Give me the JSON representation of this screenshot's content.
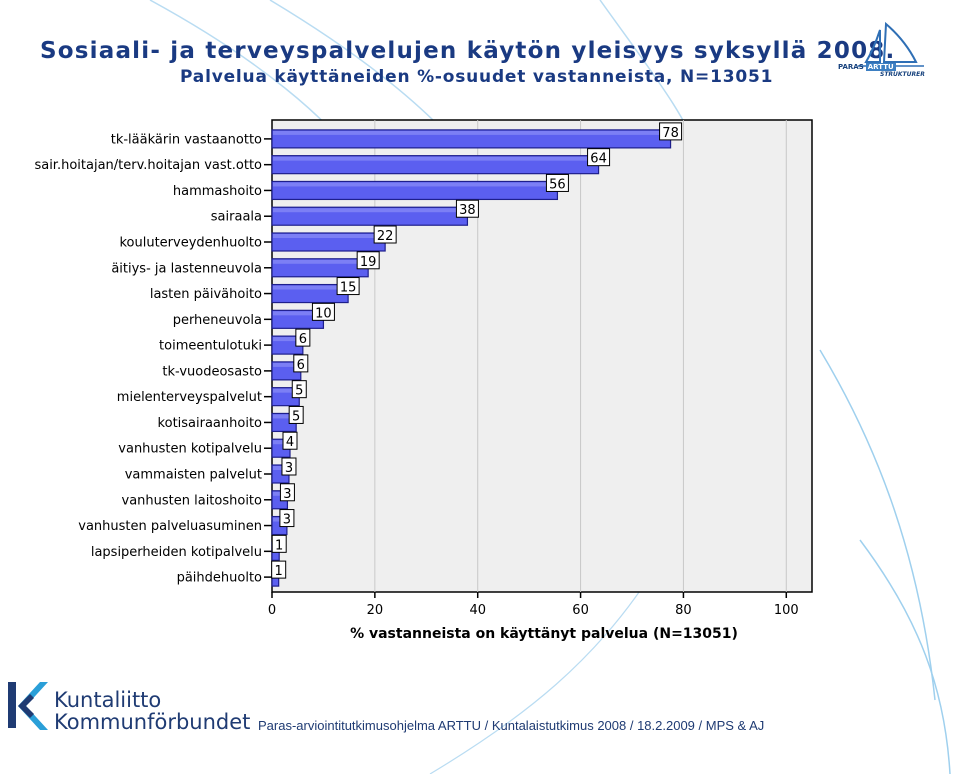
{
  "header": {
    "title": "Sosiaali- ja terveyspalvelujen käytön yleisyys syksyllä 2008.",
    "subtitle": "Palvelua käyttäneiden %-osuudet vastanneista, N=13051"
  },
  "logos": {
    "paras_brand": "PARAS",
    "paras_product": "ARTTU",
    "paras_tagline": "STRUKTURER",
    "org_line1": "Kuntaliitto",
    "org_line2": "Kommunförbundet"
  },
  "footer": {
    "text": "Paras-arviointitutkimusohjelma ARTTU / Kuntalaistutkimus 2008 / 18.2.2009 / MPS & AJ"
  },
  "colors": {
    "bar_fill": "#5b5ff0",
    "bar_border": "#1e1f8c",
    "plot_bg": "#efefef",
    "gridline": "#c8c8c8",
    "title": "#1a3a82"
  },
  "chart_data": {
    "type": "bar",
    "orientation": "horizontal",
    "title": "",
    "xlabel": "% vastanneista on käyttänyt palvelua (N=13051)",
    "ylabel": "",
    "xlim": [
      0,
      105
    ],
    "xticks": [
      0,
      20,
      40,
      60,
      80,
      100
    ],
    "grid": true,
    "categories": [
      "tk-lääkärin vastaanotto",
      "sair.hoitajan/terv.hoitajan vast.otto",
      "hammashoito",
      "sairaala",
      "kouluterveydenhuolto",
      "äitiys- ja lastenneuvola",
      "lasten päivähoito",
      "perheneuvola",
      "toimeentulotuki",
      "tk-vuodeosasto",
      "mielenterveyspalvelut",
      "kotisairaanhoito",
      "vanhusten kotipalvelu",
      "vammaisten palvelut",
      "vanhusten laitoshoito",
      "vanhusten palveluasuminen",
      "lapsiperheiden kotipalvelu",
      "päihdehuolto"
    ],
    "values": [
      77.5,
      63.5,
      55.5,
      38,
      22,
      18.7,
      14.8,
      10,
      6,
      5.6,
      5.3,
      4.7,
      3.5,
      3.3,
      3,
      2.9,
      1.4,
      1.3
    ],
    "value_labels": [
      "78",
      "64",
      "56",
      "38",
      "22",
      "19",
      "15",
      "10",
      "6",
      "6",
      "5",
      "5",
      "4",
      "3",
      "3",
      "3",
      "1",
      "1"
    ]
  }
}
